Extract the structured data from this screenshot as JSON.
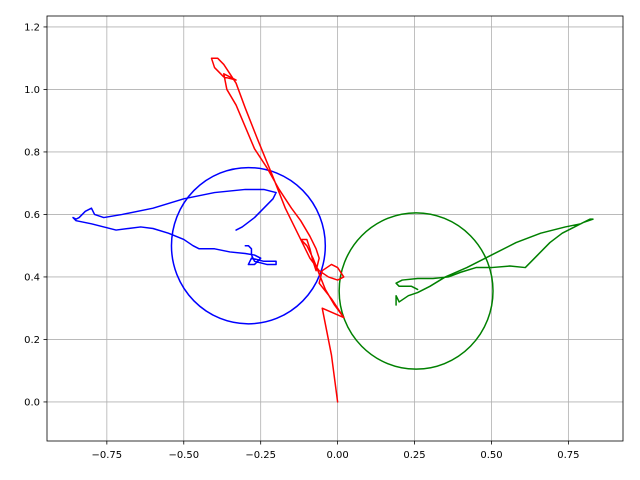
{
  "chart_data": {
    "type": "line",
    "title": "",
    "xlabel": "",
    "ylabel": "",
    "xlim": [
      -0.9445,
      0.9275
    ],
    "ylim": [
      -0.125,
      1.235
    ],
    "grid": true,
    "x_ticks": [
      "−0.75",
      "−0.50",
      "−0.25",
      "0.00",
      "0.25",
      "0.50",
      "0.75"
    ],
    "x_tick_values": [
      -0.75,
      -0.5,
      -0.25,
      0.0,
      0.25,
      0.5,
      0.75
    ],
    "y_ticks": [
      "0.0",
      "0.2",
      "0.4",
      "0.6",
      "0.8",
      "1.0",
      "1.2"
    ],
    "y_tick_values": [
      0.0,
      0.2,
      0.4,
      0.6,
      0.8,
      1.0,
      1.2
    ],
    "series": [
      {
        "color": "#ff0000",
        "points": [
          [
            0.0,
            0.0
          ],
          [
            -0.02,
            0.15
          ],
          [
            -0.05,
            0.3
          ],
          [
            0.02,
            0.27
          ],
          [
            -0.02,
            0.33
          ],
          [
            -0.06,
            0.38
          ],
          [
            -0.05,
            0.42
          ],
          [
            -0.02,
            0.44
          ],
          [
            0.0,
            0.43
          ],
          [
            0.02,
            0.4
          ],
          [
            0.0,
            0.39
          ],
          [
            -0.03,
            0.4
          ],
          [
            -0.06,
            0.42
          ],
          [
            -0.09,
            0.46
          ],
          [
            -0.11,
            0.5
          ],
          [
            -0.13,
            0.54
          ],
          [
            -0.17,
            0.62
          ],
          [
            -0.21,
            0.72
          ],
          [
            -0.26,
            0.84
          ],
          [
            -0.3,
            0.94
          ],
          [
            -0.33,
            1.02
          ],
          [
            -0.35,
            1.05
          ],
          [
            -0.37,
            1.08
          ],
          [
            -0.39,
            1.1
          ],
          [
            -0.41,
            1.1
          ],
          [
            -0.4,
            1.07
          ],
          [
            -0.37,
            1.04
          ],
          [
            -0.33,
            1.03
          ],
          [
            -0.37,
            1.05
          ],
          [
            -0.36,
            1.0
          ],
          [
            -0.33,
            0.95
          ],
          [
            -0.3,
            0.88
          ],
          [
            -0.27,
            0.81
          ],
          [
            -0.23,
            0.75
          ],
          [
            -0.19,
            0.68
          ],
          [
            -0.15,
            0.62
          ],
          [
            -0.12,
            0.58
          ],
          [
            -0.09,
            0.53
          ],
          [
            -0.07,
            0.49
          ],
          [
            -0.06,
            0.46
          ],
          [
            -0.07,
            0.42
          ],
          [
            -0.08,
            0.45
          ],
          [
            -0.09,
            0.49
          ],
          [
            -0.1,
            0.52
          ],
          [
            -0.12,
            0.52
          ],
          [
            -0.1,
            0.5
          ],
          [
            -0.08,
            0.46
          ],
          [
            -0.06,
            0.41
          ],
          [
            -0.04,
            0.36
          ],
          [
            -0.01,
            0.31
          ],
          [
            0.02,
            0.27
          ]
        ]
      },
      {
        "color": "#0000ff",
        "points": [
          [
            -0.33,
            0.55
          ],
          [
            -0.31,
            0.56
          ],
          [
            -0.27,
            0.59
          ],
          [
            -0.24,
            0.62
          ],
          [
            -0.21,
            0.65
          ],
          [
            -0.2,
            0.67
          ],
          [
            -0.24,
            0.68
          ],
          [
            -0.3,
            0.68
          ],
          [
            -0.4,
            0.67
          ],
          [
            -0.5,
            0.65
          ],
          [
            -0.6,
            0.62
          ],
          [
            -0.7,
            0.6
          ],
          [
            -0.76,
            0.59
          ],
          [
            -0.79,
            0.6
          ],
          [
            -0.8,
            0.62
          ],
          [
            -0.82,
            0.61
          ],
          [
            -0.84,
            0.59
          ],
          [
            -0.85,
            0.585
          ],
          [
            -0.86,
            0.59
          ],
          [
            -0.85,
            0.58
          ],
          [
            -0.8,
            0.57
          ],
          [
            -0.76,
            0.56
          ],
          [
            -0.72,
            0.55
          ],
          [
            -0.68,
            0.555
          ],
          [
            -0.64,
            0.56
          ],
          [
            -0.6,
            0.555
          ],
          [
            -0.55,
            0.54
          ],
          [
            -0.5,
            0.52
          ],
          [
            -0.47,
            0.5
          ],
          [
            -0.45,
            0.49
          ],
          [
            -0.4,
            0.49
          ],
          [
            -0.35,
            0.48
          ],
          [
            -0.3,
            0.475
          ],
          [
            -0.27,
            0.47
          ],
          [
            -0.25,
            0.46
          ],
          [
            -0.27,
            0.44
          ],
          [
            -0.29,
            0.44
          ],
          [
            -0.28,
            0.46
          ],
          [
            -0.24,
            0.45
          ],
          [
            -0.2,
            0.45
          ],
          [
            -0.2,
            0.44
          ],
          [
            -0.23,
            0.44
          ],
          [
            -0.27,
            0.45
          ],
          [
            -0.28,
            0.47
          ],
          [
            -0.28,
            0.49
          ],
          [
            -0.29,
            0.5
          ],
          [
            -0.3,
            0.5
          ]
        ]
      },
      {
        "color": "#008000",
        "points": [
          [
            0.19,
            0.31
          ],
          [
            0.19,
            0.33
          ],
          [
            0.19,
            0.34
          ],
          [
            0.2,
            0.32
          ],
          [
            0.23,
            0.34
          ],
          [
            0.26,
            0.35
          ],
          [
            0.3,
            0.37
          ],
          [
            0.35,
            0.4
          ],
          [
            0.42,
            0.43
          ],
          [
            0.5,
            0.47
          ],
          [
            0.58,
            0.51
          ],
          [
            0.66,
            0.54
          ],
          [
            0.74,
            0.56
          ],
          [
            0.79,
            0.57
          ],
          [
            0.82,
            0.585
          ],
          [
            0.83,
            0.585
          ],
          [
            0.8,
            0.575
          ],
          [
            0.77,
            0.56
          ],
          [
            0.73,
            0.54
          ],
          [
            0.69,
            0.51
          ],
          [
            0.65,
            0.47
          ],
          [
            0.61,
            0.43
          ],
          [
            0.56,
            0.435
          ],
          [
            0.5,
            0.43
          ],
          [
            0.45,
            0.43
          ],
          [
            0.4,
            0.415
          ],
          [
            0.36,
            0.4
          ],
          [
            0.31,
            0.395
          ],
          [
            0.26,
            0.395
          ],
          [
            0.21,
            0.39
          ],
          [
            0.19,
            0.38
          ],
          [
            0.2,
            0.37
          ],
          [
            0.22,
            0.37
          ],
          [
            0.24,
            0.37
          ],
          [
            0.26,
            0.36
          ]
        ]
      }
    ],
    "circles": [
      {
        "color": "#0000ff",
        "cx": -0.29,
        "cy": 0.5,
        "r": 0.25
      },
      {
        "color": "#008000",
        "cx": 0.255,
        "cy": 0.355,
        "r": 0.25
      }
    ]
  }
}
